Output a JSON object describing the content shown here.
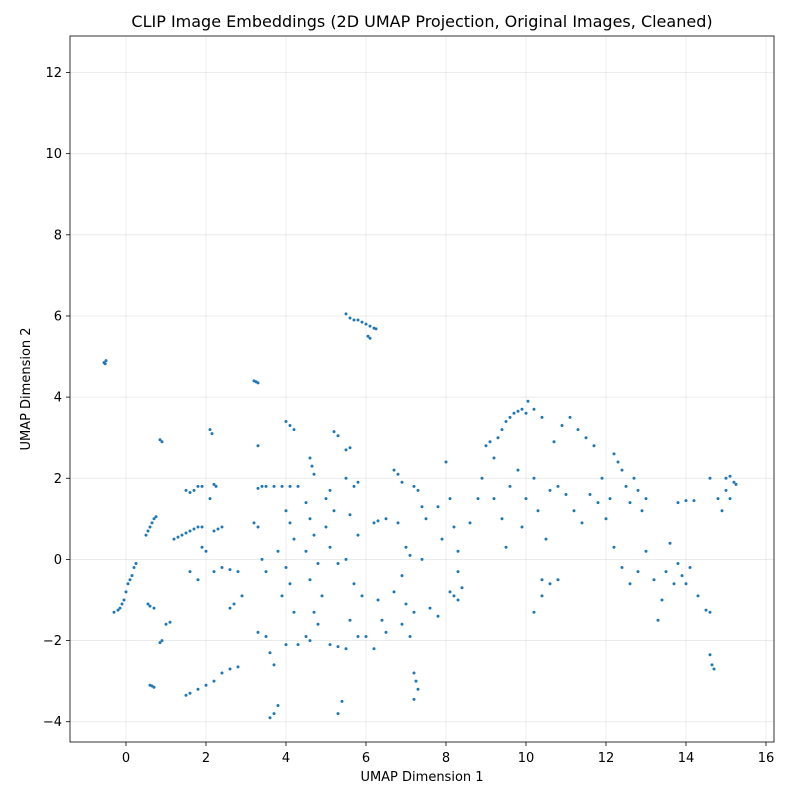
{
  "chart_data": {
    "type": "scatter",
    "title": "CLIP Image Embeddings (2D UMAP Projection, Original Images, Cleaned)",
    "xlabel": "UMAP Dimension 1",
    "ylabel": "UMAP Dimension 2",
    "xlim": [
      -1.4,
      16.2
    ],
    "ylim": [
      -4.5,
      12.9
    ],
    "xticks": [
      0,
      2,
      4,
      6,
      8,
      10,
      12,
      14,
      16
    ],
    "yticks": [
      -4,
      -2,
      0,
      2,
      4,
      6,
      8,
      10,
      12
    ],
    "grid": true,
    "point_color": "#1f77b4",
    "series": [
      {
        "points": [
          [
            -0.55,
            4.85
          ],
          [
            -0.5,
            4.9
          ],
          [
            -0.52,
            4.82
          ],
          [
            -0.3,
            -1.3
          ],
          [
            -0.2,
            -1.25
          ],
          [
            -0.15,
            -1.2
          ],
          [
            -0.1,
            -1.1
          ],
          [
            -0.05,
            -1.0
          ],
          [
            0.0,
            -0.8
          ],
          [
            0.05,
            -0.6
          ],
          [
            0.1,
            -0.5
          ],
          [
            0.15,
            -0.4
          ],
          [
            0.2,
            -0.2
          ],
          [
            0.25,
            -0.1
          ],
          [
            0.5,
            0.6
          ],
          [
            0.55,
            0.7
          ],
          [
            0.6,
            0.8
          ],
          [
            0.65,
            0.9
          ],
          [
            0.7,
            1.0
          ],
          [
            0.75,
            1.05
          ],
          [
            0.6,
            -3.1
          ],
          [
            0.65,
            -3.12
          ],
          [
            0.7,
            -3.15
          ],
          [
            0.55,
            -1.1
          ],
          [
            0.6,
            -1.15
          ],
          [
            0.7,
            -1.2
          ],
          [
            0.85,
            -2.05
          ],
          [
            0.9,
            -2.0
          ],
          [
            0.85,
            2.95
          ],
          [
            0.9,
            2.9
          ],
          [
            1.0,
            -1.6
          ],
          [
            1.1,
            -1.55
          ],
          [
            1.2,
            0.5
          ],
          [
            1.3,
            0.55
          ],
          [
            1.4,
            0.6
          ],
          [
            1.5,
            0.65
          ],
          [
            1.6,
            0.7
          ],
          [
            1.7,
            0.75
          ],
          [
            1.8,
            0.8
          ],
          [
            1.9,
            0.8
          ],
          [
            1.5,
            1.7
          ],
          [
            1.6,
            1.65
          ],
          [
            1.7,
            1.7
          ],
          [
            1.8,
            1.8
          ],
          [
            1.9,
            1.8
          ],
          [
            1.5,
            -3.35
          ],
          [
            1.6,
            -3.3
          ],
          [
            1.8,
            -3.2
          ],
          [
            2.0,
            -3.1
          ],
          [
            2.2,
            -3.0
          ],
          [
            2.4,
            -2.8
          ],
          [
            2.6,
            -2.7
          ],
          [
            2.8,
            -2.65
          ],
          [
            1.6,
            -0.3
          ],
          [
            1.8,
            -0.5
          ],
          [
            1.9,
            0.3
          ],
          [
            2.0,
            0.2
          ],
          [
            2.1,
            3.2
          ],
          [
            2.15,
            3.1
          ],
          [
            2.2,
            1.85
          ],
          [
            2.25,
            1.8
          ],
          [
            2.1,
            1.5
          ],
          [
            2.2,
            0.7
          ],
          [
            2.3,
            0.75
          ],
          [
            2.4,
            0.8
          ],
          [
            2.2,
            -0.3
          ],
          [
            2.4,
            -0.2
          ],
          [
            2.6,
            -0.25
          ],
          [
            2.8,
            -0.3
          ],
          [
            2.6,
            -1.2
          ],
          [
            2.7,
            -1.1
          ],
          [
            2.9,
            -0.9
          ],
          [
            3.2,
            4.4
          ],
          [
            3.25,
            4.38
          ],
          [
            3.3,
            4.35
          ],
          [
            3.3,
            2.8
          ],
          [
            3.3,
            1.75
          ],
          [
            3.4,
            1.8
          ],
          [
            3.5,
            1.8
          ],
          [
            3.7,
            1.8
          ],
          [
            3.9,
            1.8
          ],
          [
            4.1,
            1.8
          ],
          [
            4.3,
            1.8
          ],
          [
            3.2,
            0.9
          ],
          [
            3.3,
            0.8
          ],
          [
            3.4,
            0.0
          ],
          [
            3.5,
            -0.3
          ],
          [
            3.3,
            -1.8
          ],
          [
            3.5,
            -1.9
          ],
          [
            3.6,
            -2.3
          ],
          [
            3.7,
            -2.6
          ],
          [
            3.6,
            -3.9
          ],
          [
            3.7,
            -3.8
          ],
          [
            3.8,
            -3.6
          ],
          [
            4.0,
            3.4
          ],
          [
            4.1,
            3.3
          ],
          [
            4.2,
            3.2
          ],
          [
            4.0,
            1.2
          ],
          [
            4.1,
            0.9
          ],
          [
            4.2,
            0.5
          ],
          [
            3.8,
            0.2
          ],
          [
            4.0,
            -0.2
          ],
          [
            4.1,
            -0.6
          ],
          [
            3.9,
            -0.9
          ],
          [
            4.2,
            -1.3
          ],
          [
            4.0,
            -2.1
          ],
          [
            4.3,
            -2.1
          ],
          [
            4.5,
            -1.9
          ],
          [
            4.6,
            -2.0
          ],
          [
            4.6,
            2.5
          ],
          [
            4.65,
            2.3
          ],
          [
            4.7,
            2.1
          ],
          [
            4.5,
            1.4
          ],
          [
            4.6,
            1.0
          ],
          [
            4.7,
            0.6
          ],
          [
            4.5,
            0.2
          ],
          [
            4.8,
            -0.1
          ],
          [
            4.6,
            -0.5
          ],
          [
            4.9,
            -0.9
          ],
          [
            4.7,
            -1.3
          ],
          [
            4.8,
            -1.6
          ],
          [
            5.0,
            1.5
          ],
          [
            5.1,
            1.7
          ],
          [
            5.2,
            1.2
          ],
          [
            5.0,
            0.8
          ],
          [
            5.1,
            0.3
          ],
          [
            5.3,
            -0.1
          ],
          [
            5.2,
            3.15
          ],
          [
            5.3,
            3.05
          ],
          [
            5.1,
            -2.1
          ],
          [
            5.3,
            -2.15
          ],
          [
            5.5,
            -2.2
          ],
          [
            5.3,
            -3.8
          ],
          [
            5.4,
            -3.5
          ],
          [
            5.5,
            6.05
          ],
          [
            5.6,
            5.95
          ],
          [
            5.7,
            5.9
          ],
          [
            5.8,
            5.9
          ],
          [
            5.9,
            5.85
          ],
          [
            6.0,
            5.8
          ],
          [
            6.1,
            5.75
          ],
          [
            6.2,
            5.7
          ],
          [
            6.25,
            5.68
          ],
          [
            6.1,
            5.45
          ],
          [
            6.05,
            5.5
          ],
          [
            5.5,
            2.7
          ],
          [
            5.6,
            2.75
          ],
          [
            5.5,
            2.0
          ],
          [
            5.7,
            1.8
          ],
          [
            5.8,
            1.9
          ],
          [
            5.6,
            1.1
          ],
          [
            5.8,
            0.6
          ],
          [
            5.5,
            0.0
          ],
          [
            5.7,
            -0.6
          ],
          [
            5.9,
            -0.9
          ],
          [
            5.6,
            -1.5
          ],
          [
            5.8,
            -1.9
          ],
          [
            6.0,
            -1.9
          ],
          [
            6.2,
            0.9
          ],
          [
            6.3,
            0.95
          ],
          [
            6.5,
            1.0
          ],
          [
            6.3,
            -1.0
          ],
          [
            6.4,
            -1.5
          ],
          [
            6.5,
            -1.8
          ],
          [
            6.2,
            -2.2
          ],
          [
            6.7,
            2.2
          ],
          [
            6.8,
            2.1
          ],
          [
            6.9,
            1.9
          ],
          [
            6.8,
            0.9
          ],
          [
            7.0,
            0.3
          ],
          [
            7.1,
            0.1
          ],
          [
            6.9,
            -0.4
          ],
          [
            6.7,
            -0.8
          ],
          [
            7.0,
            -1.1
          ],
          [
            7.2,
            -1.3
          ],
          [
            6.9,
            -1.6
          ],
          [
            7.1,
            -1.9
          ],
          [
            7.2,
            -2.8
          ],
          [
            7.25,
            -3.0
          ],
          [
            7.3,
            -3.2
          ],
          [
            7.2,
            -3.45
          ],
          [
            7.2,
            1.8
          ],
          [
            7.3,
            1.7
          ],
          [
            7.4,
            1.3
          ],
          [
            7.5,
            1.0
          ],
          [
            7.4,
            0.0
          ],
          [
            7.6,
            -1.2
          ],
          [
            7.8,
            -1.4
          ],
          [
            7.8,
            1.3
          ],
          [
            7.9,
            0.5
          ],
          [
            8.0,
            2.4
          ],
          [
            8.1,
            1.5
          ],
          [
            8.2,
            0.8
          ],
          [
            8.3,
            0.2
          ],
          [
            8.1,
            -0.8
          ],
          [
            8.2,
            -0.9
          ],
          [
            8.3,
            -1.0
          ],
          [
            8.4,
            -0.7
          ],
          [
            8.3,
            -0.3
          ],
          [
            8.6,
            0.9
          ],
          [
            8.8,
            1.5
          ],
          [
            8.9,
            2.0
          ],
          [
            9.0,
            2.8
          ],
          [
            9.1,
            2.9
          ],
          [
            9.2,
            2.5
          ],
          [
            9.3,
            3.0
          ],
          [
            9.4,
            3.2
          ],
          [
            9.5,
            3.4
          ],
          [
            9.6,
            3.5
          ],
          [
            9.7,
            3.6
          ],
          [
            9.8,
            3.65
          ],
          [
            9.9,
            3.7
          ],
          [
            10.0,
            3.6
          ],
          [
            10.05,
            3.9
          ],
          [
            10.2,
            3.7
          ],
          [
            10.4,
            3.5
          ],
          [
            9.2,
            1.5
          ],
          [
            9.4,
            1.0
          ],
          [
            9.5,
            0.3
          ],
          [
            9.6,
            1.8
          ],
          [
            9.8,
            2.2
          ],
          [
            9.9,
            0.8
          ],
          [
            10.0,
            1.5
          ],
          [
            10.2,
            2.0
          ],
          [
            10.3,
            1.2
          ],
          [
            10.5,
            0.5
          ],
          [
            10.4,
            -0.5
          ],
          [
            10.6,
            -0.6
          ],
          [
            10.8,
            -0.5
          ],
          [
            10.2,
            -1.3
          ],
          [
            10.4,
            -0.9
          ],
          [
            10.6,
            1.7
          ],
          [
            10.8,
            1.8
          ],
          [
            10.7,
            2.9
          ],
          [
            10.9,
            3.3
          ],
          [
            11.1,
            3.5
          ],
          [
            11.3,
            3.2
          ],
          [
            11.5,
            3.0
          ],
          [
            11.7,
            2.8
          ],
          [
            11.0,
            1.6
          ],
          [
            11.2,
            1.2
          ],
          [
            11.4,
            0.9
          ],
          [
            11.6,
            1.6
          ],
          [
            11.8,
            1.4
          ],
          [
            11.9,
            2.0
          ],
          [
            12.0,
            1.0
          ],
          [
            12.1,
            1.5
          ],
          [
            12.2,
            2.6
          ],
          [
            12.3,
            2.4
          ],
          [
            12.4,
            2.2
          ],
          [
            12.5,
            1.8
          ],
          [
            12.6,
            1.4
          ],
          [
            12.7,
            2.0
          ],
          [
            12.8,
            1.7
          ],
          [
            12.9,
            1.2
          ],
          [
            13.0,
            1.5
          ],
          [
            12.2,
            0.3
          ],
          [
            12.4,
            -0.2
          ],
          [
            12.6,
            -0.6
          ],
          [
            12.8,
            -0.3
          ],
          [
            13.0,
            0.2
          ],
          [
            13.2,
            -0.5
          ],
          [
            13.3,
            -1.5
          ],
          [
            13.4,
            -1.0
          ],
          [
            13.5,
            -0.3
          ],
          [
            13.6,
            0.4
          ],
          [
            13.7,
            -0.6
          ],
          [
            13.8,
            -0.1
          ],
          [
            13.9,
            -0.4
          ],
          [
            14.0,
            -0.6
          ],
          [
            14.1,
            -0.2
          ],
          [
            14.3,
            -0.9
          ],
          [
            14.5,
            -1.25
          ],
          [
            14.6,
            -1.3
          ],
          [
            14.7,
            -2.7
          ],
          [
            14.65,
            -2.6
          ],
          [
            14.6,
            -2.35
          ],
          [
            13.8,
            1.4
          ],
          [
            14.0,
            1.45
          ],
          [
            14.2,
            1.45
          ],
          [
            14.6,
            2.0
          ],
          [
            14.8,
            1.5
          ],
          [
            14.9,
            1.2
          ],
          [
            15.0,
            2.0
          ],
          [
            15.1,
            2.05
          ],
          [
            15.2,
            1.9
          ],
          [
            15.25,
            1.85
          ],
          [
            15.1,
            1.5
          ],
          [
            15.0,
            1.7
          ]
        ]
      }
    ]
  }
}
